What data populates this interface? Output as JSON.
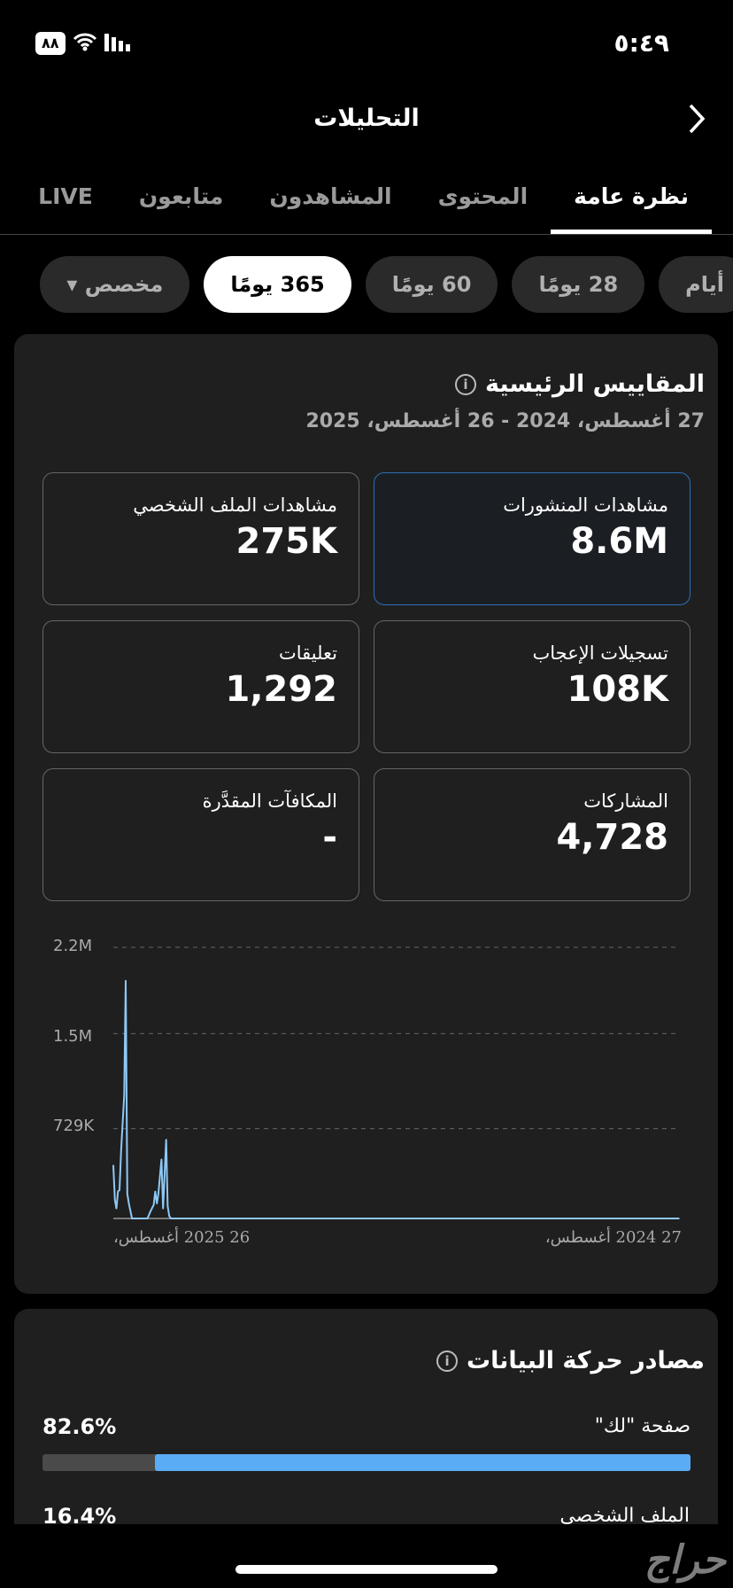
{
  "status": {
    "time": "٥:٤٩",
    "battery": "٨٨"
  },
  "header": {
    "title": "التحليلات"
  },
  "tabs": [
    {
      "label": "نظرة عامة",
      "active": true
    },
    {
      "label": "المحتوى"
    },
    {
      "label": "المشاهدون"
    },
    {
      "label": "متابعون"
    },
    {
      "label": "LIVE"
    }
  ],
  "ranges": [
    {
      "label": "أيام"
    },
    {
      "label": "28 يومًا"
    },
    {
      "label": "60 يومًا"
    },
    {
      "label": "365 يومًا",
      "active": true
    },
    {
      "label": "مخصص ▾"
    }
  ],
  "key_metrics": {
    "title": "المقاييس الرئيسية",
    "date_range": "27 أغسطس، 2024 - 26 أغسطس، 2025",
    "items": [
      {
        "label": "مشاهدات المنشورات",
        "value": "8.6M",
        "selected": true
      },
      {
        "label": "مشاهدات الملف الشخصي",
        "value": "275K"
      },
      {
        "label": "تسجيلات الإعجاب",
        "value": "108K"
      },
      {
        "label": "تعليقات",
        "value": "1,292"
      },
      {
        "label": "المشاركات",
        "value": "4,728"
      },
      {
        "label": "المكافآت المقدَّرة",
        "value": "-"
      }
    ]
  },
  "chart_data": {
    "type": "line",
    "y_ticks": [
      "2.2M",
      "1.5M",
      "729K"
    ],
    "ylim": [
      0,
      2200000
    ],
    "x_tick_labels": [
      "26 2025 أغسطس،",
      "27 2024 أغسطس،"
    ],
    "x_direction": "right-to-left",
    "grid": "dashed-horizontal",
    "color": "#8ec8f5",
    "points": [
      [
        "2025-08-26",
        430000
      ],
      [
        "2025-08-25",
        150000
      ],
      [
        "2025-08-24",
        80000
      ],
      [
        "2025-08-23",
        220000
      ],
      [
        "2025-08-22",
        230000
      ],
      [
        "2025-08-21",
        550000
      ],
      [
        "2025-08-19",
        1000000
      ],
      [
        "2025-08-18",
        1930000
      ],
      [
        "2025-08-17",
        200000
      ],
      [
        "2025-08-16",
        120000
      ],
      [
        "2025-08-14",
        0
      ],
      [
        "2025-08-04",
        0
      ],
      [
        "2025-08-02",
        60000
      ],
      [
        "2025-07-31",
        110000
      ],
      [
        "2025-07-30",
        220000
      ],
      [
        "2025-07-29",
        120000
      ],
      [
        "2025-07-28",
        200000
      ],
      [
        "2025-07-26",
        480000
      ],
      [
        "2025-07-25",
        80000
      ],
      [
        "2025-07-23",
        640000
      ],
      [
        "2025-07-22",
        100000
      ],
      [
        "2025-07-21",
        20000
      ],
      [
        "2025-07-20",
        0
      ],
      [
        "2024-08-27",
        0
      ]
    ]
  },
  "traffic": {
    "title": "مصادر حركة البيانات",
    "items": [
      {
        "label": "صفحة \"لك\"",
        "value": "82.6%",
        "fraction": 0.826
      },
      {
        "label": "الملف الشخصي",
        "value": "16.4%"
      }
    ]
  },
  "watermark": "حراج"
}
